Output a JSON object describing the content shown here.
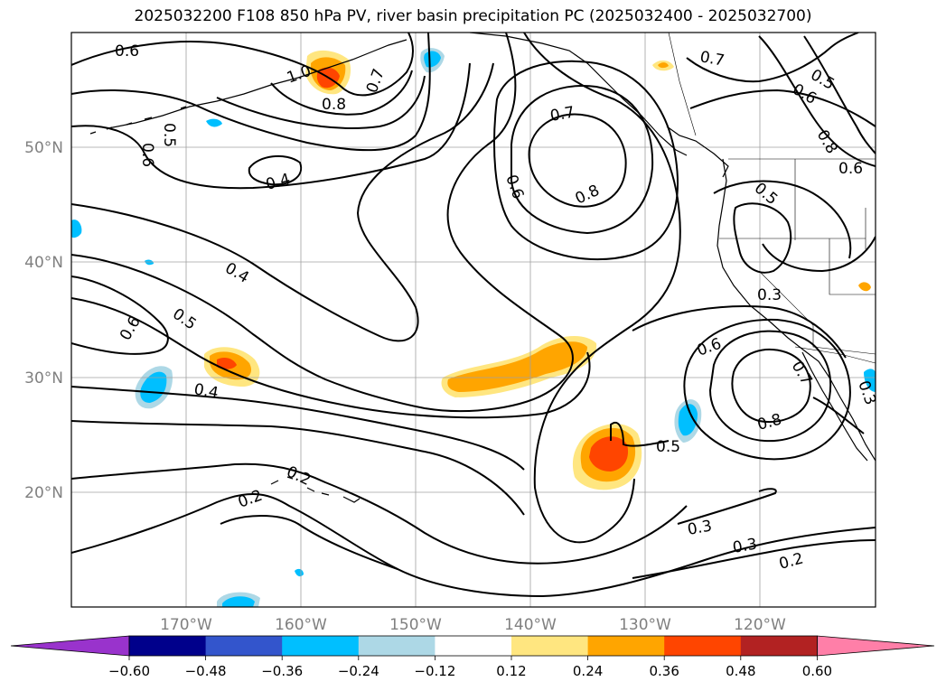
{
  "title": "2025032200 F108 850 hPa PV, river basin precipitation PC (2025032400 - 2025032700)",
  "map": {
    "lon_labels": [
      "170°W",
      "160°W",
      "150°W",
      "140°W",
      "130°W",
      "120°W"
    ],
    "lat_labels": [
      "20°N",
      "30°N",
      "40°N",
      "50°N"
    ],
    "label_color": "#808080",
    "contour_labels": [
      "0.6",
      "1.0",
      "0.8",
      "0.7",
      "0.5",
      "0.6",
      "0.4",
      "0.4",
      "0.5",
      "0.6",
      "0.4",
      "0.2",
      "0.2",
      "0.7",
      "0.6",
      "0.8",
      "0.7",
      "0.5",
      "0.6",
      "0.8",
      "0.6",
      "0.5",
      "0.3",
      "0.6",
      "0.7",
      "0.8",
      "0.5",
      "0.3",
      "0.3",
      "0.2",
      "0.3"
    ]
  },
  "colorbar": {
    "ticks": [
      "−0.60",
      "−0.48",
      "−0.36",
      "−0.24",
      "−0.12",
      "0.12",
      "0.24",
      "0.36",
      "0.48",
      "0.60"
    ],
    "colors": [
      "#9933cc",
      "#00008b",
      "#3355cc",
      "#00bfff",
      "#add8e6",
      "#ffffff",
      "#ffe680",
      "#ffa500",
      "#ff4500",
      "#b22222",
      "#ff7fa8"
    ]
  }
}
